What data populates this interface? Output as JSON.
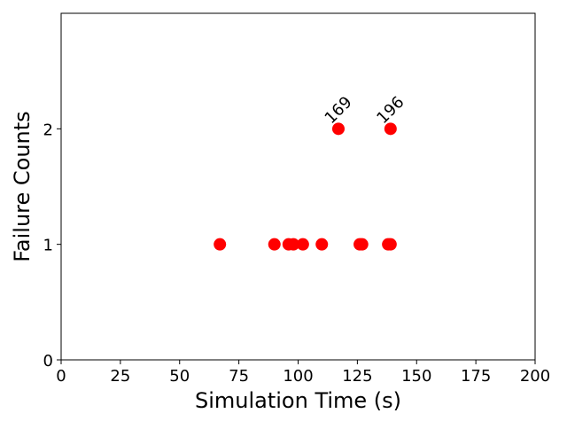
{
  "chart_data": {
    "type": "scatter",
    "xlabel": "Simulation Time (s)",
    "ylabel": "Failure Counts",
    "xlim": [
      0,
      200
    ],
    "ylim": [
      0,
      3
    ],
    "xticks": [
      0,
      25,
      50,
      75,
      100,
      125,
      150,
      175,
      200
    ],
    "yticks": [
      0,
      1,
      2
    ],
    "grid": false,
    "marker_color": "#ff0000",
    "series": [
      {
        "points": [
          {
            "x": 67,
            "y": 1
          },
          {
            "x": 90,
            "y": 1
          },
          {
            "x": 96,
            "y": 1
          },
          {
            "x": 98,
            "y": 1
          },
          {
            "x": 102,
            "y": 1
          },
          {
            "x": 110,
            "y": 1
          },
          {
            "x": 126,
            "y": 1
          },
          {
            "x": 127,
            "y": 1
          },
          {
            "x": 138,
            "y": 1
          },
          {
            "x": 139,
            "y": 1
          },
          {
            "x": 117,
            "y": 2,
            "label": "169"
          },
          {
            "x": 139,
            "y": 2,
            "label": "196"
          }
        ]
      }
    ]
  }
}
